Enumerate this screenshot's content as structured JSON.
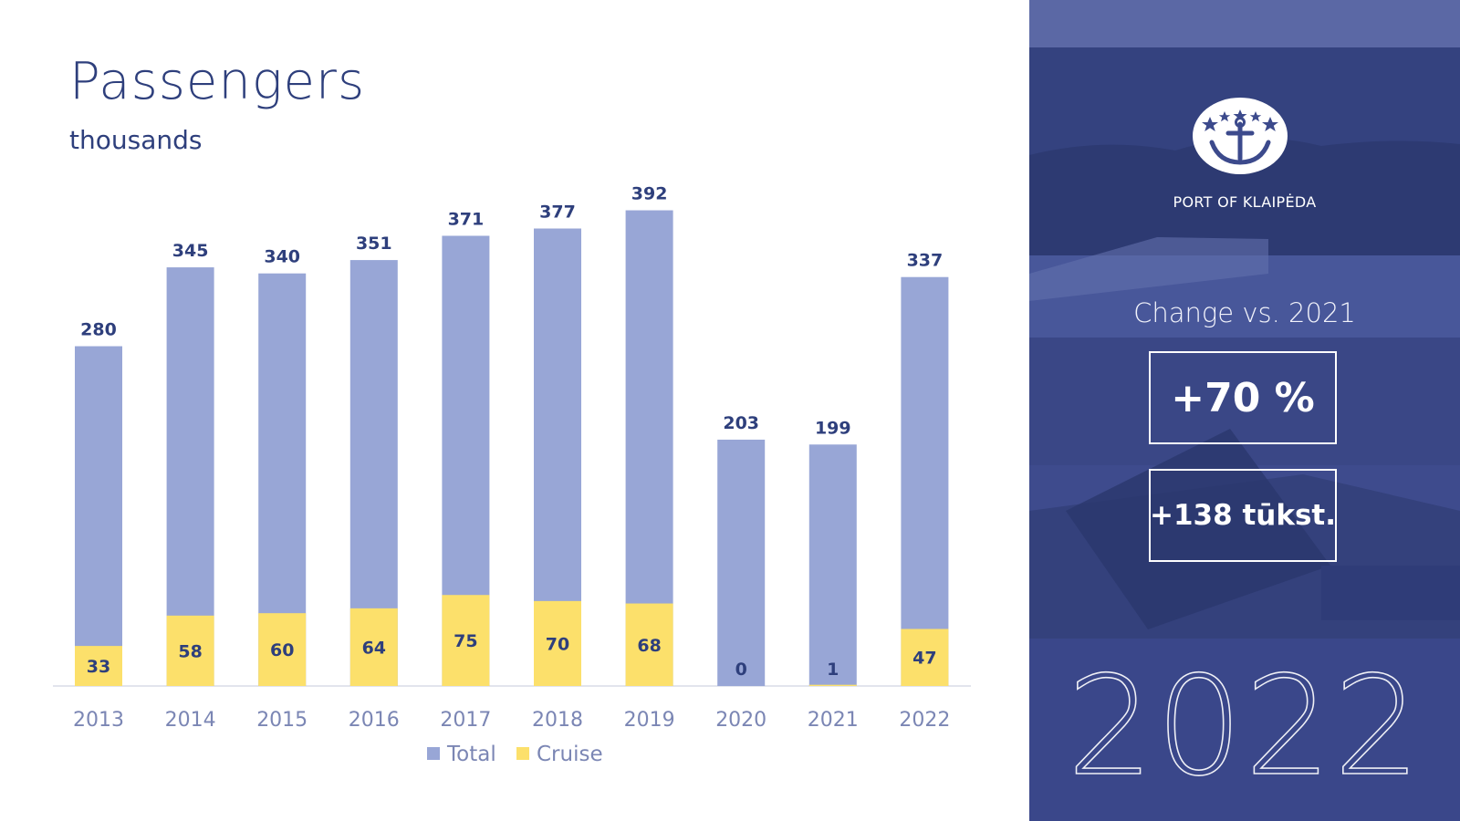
{
  "title": "Passengers",
  "subtitle": "thousands",
  "chart_data": {
    "type": "bar",
    "stacked": true,
    "title": "Passengers",
    "subtitle": "thousands",
    "categories": [
      "2013",
      "2014",
      "2015",
      "2016",
      "2017",
      "2018",
      "2019",
      "2020",
      "2021",
      "2022"
    ],
    "series": [
      {
        "name": "Total",
        "values": [
          280,
          345,
          340,
          351,
          371,
          377,
          392,
          203,
          199,
          337
        ],
        "color": "#98a6d6"
      },
      {
        "name": "Cruise",
        "values": [
          33,
          58,
          60,
          64,
          75,
          70,
          68,
          0,
          1,
          47
        ],
        "color": "#fce06b"
      }
    ],
    "legend_position": "bottom-center",
    "ylim": [
      0,
      430
    ],
    "grid": false
  },
  "colors": {
    "title": "#2e3f7c",
    "axis_label": "#7b86b4",
    "value_label": "#2e3f7c",
    "panel_bg": "#3c4a8c",
    "baseline": "#d8dbe7"
  },
  "panel": {
    "port_name": "PORT OF KLAIPĖDA",
    "logo_icon": "anchor-emblem-icon",
    "change_label": "Change vs. 2021",
    "kpi_percent": "+70 %",
    "kpi_absolute": "+138 tūkst.",
    "year": "2022"
  }
}
